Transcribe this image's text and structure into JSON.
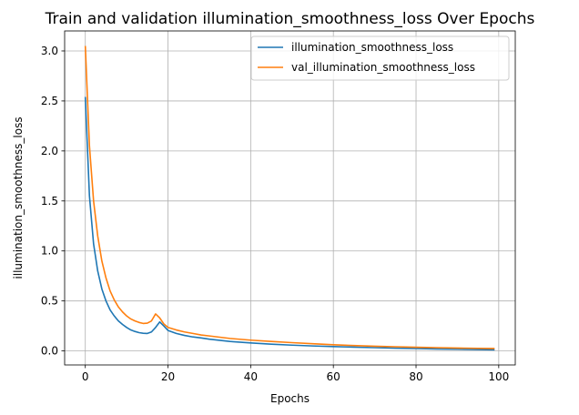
{
  "chart_data": {
    "type": "line",
    "title": "Train and validation illumination_smoothness_loss Over Epochs",
    "xlabel": "Epochs",
    "ylabel": "illumination_smoothness_loss",
    "xlim": [
      -5,
      104
    ],
    "ylim": [
      -0.14,
      3.2
    ],
    "xticks": [
      0,
      20,
      40,
      60,
      80,
      100
    ],
    "yticks": [
      0.0,
      0.5,
      1.0,
      1.5,
      2.0,
      2.5,
      3.0
    ],
    "xtick_labels": [
      "0",
      "20",
      "40",
      "60",
      "80",
      "100"
    ],
    "ytick_labels": [
      "0.0",
      "0.5",
      "1.0",
      "1.5",
      "2.0",
      "2.5",
      "3.0"
    ],
    "grid": true,
    "legend_position": "top-right",
    "series": [
      {
        "name": "illumination_smoothness_loss",
        "color": "#1f77b4",
        "x": [
          0,
          1,
          2,
          3,
          4,
          5,
          6,
          7,
          8,
          9,
          10,
          11,
          12,
          13,
          14,
          15,
          16,
          17,
          18,
          19,
          20,
          22,
          24,
          26,
          28,
          30,
          35,
          40,
          45,
          50,
          55,
          60,
          65,
          70,
          75,
          80,
          85,
          90,
          95,
          99
        ],
        "y": [
          2.54,
          1.55,
          1.07,
          0.8,
          0.62,
          0.5,
          0.41,
          0.35,
          0.3,
          0.265,
          0.235,
          0.21,
          0.195,
          0.183,
          0.177,
          0.175,
          0.19,
          0.235,
          0.29,
          0.25,
          0.205,
          0.175,
          0.155,
          0.14,
          0.13,
          0.118,
          0.095,
          0.08,
          0.068,
          0.058,
          0.05,
          0.044,
          0.038,
          0.033,
          0.028,
          0.024,
          0.02,
          0.017,
          0.014,
          0.012
        ]
      },
      {
        "name": "val_illumination_smoothness_loss",
        "color": "#ff7f0e",
        "x": [
          0,
          1,
          2,
          3,
          4,
          5,
          6,
          7,
          8,
          9,
          10,
          11,
          12,
          13,
          14,
          15,
          16,
          17,
          18,
          19,
          20,
          22,
          24,
          26,
          28,
          30,
          35,
          40,
          45,
          50,
          55,
          60,
          65,
          70,
          75,
          80,
          85,
          90,
          95,
          99
        ],
        "y": [
          3.05,
          2.05,
          1.5,
          1.15,
          0.9,
          0.73,
          0.6,
          0.51,
          0.44,
          0.39,
          0.35,
          0.32,
          0.3,
          0.285,
          0.275,
          0.278,
          0.3,
          0.37,
          0.33,
          0.27,
          0.235,
          0.21,
          0.19,
          0.175,
          0.16,
          0.15,
          0.125,
          0.108,
          0.095,
          0.083,
          0.072,
          0.062,
          0.054,
          0.047,
          0.042,
          0.037,
          0.033,
          0.029,
          0.026,
          0.024
        ]
      }
    ]
  }
}
